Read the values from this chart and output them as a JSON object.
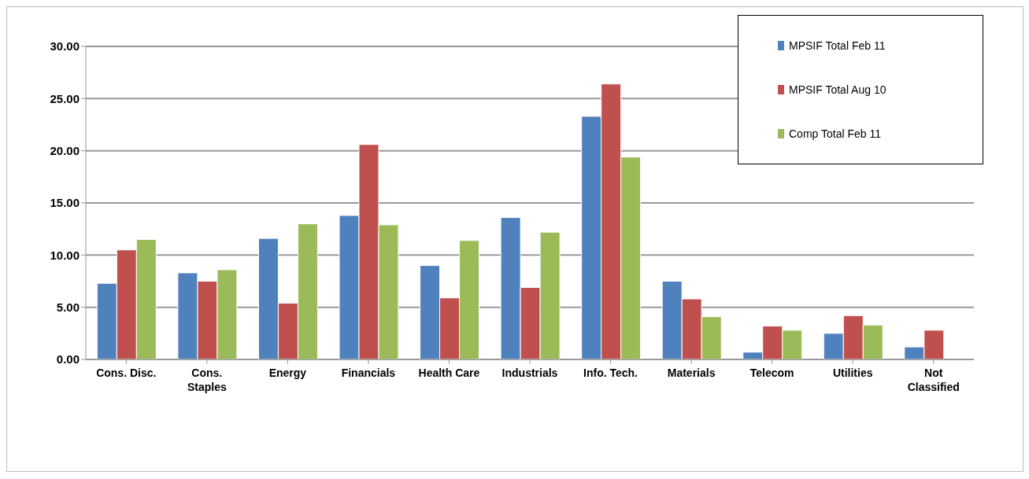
{
  "chart_data": {
    "type": "bar",
    "categories": [
      "Cons. Disc.",
      "Cons. Staples",
      "Energy",
      "Financials",
      "Health Care",
      "Industrials",
      "Info. Tech.",
      "Materials",
      "Telecom",
      "Utilities",
      "Not Classified"
    ],
    "series": [
      {
        "name": "MPSIF Total  Feb 11",
        "color": "#4f81bd",
        "values": [
          7.3,
          8.3,
          11.6,
          13.8,
          9.0,
          13.6,
          23.3,
          7.5,
          0.7,
          2.5,
          1.2
        ]
      },
      {
        "name": "MPSIF Total Aug 10",
        "color": "#c0504d",
        "values": [
          10.5,
          7.5,
          5.4,
          20.6,
          5.9,
          6.9,
          26.4,
          5.8,
          3.2,
          4.2,
          2.8
        ]
      },
      {
        "name": "Comp Total Feb 11",
        "color": "#9bbb59",
        "values": [
          11.5,
          8.6,
          13.0,
          12.9,
          11.4,
          12.2,
          19.4,
          4.1,
          2.8,
          3.3,
          0
        ]
      }
    ],
    "ylim": [
      0,
      30
    ],
    "yticks": [
      {
        "value": 0,
        "label": "0.00"
      },
      {
        "value": 5,
        "label": "5.00"
      },
      {
        "value": 10,
        "label": "10.00"
      },
      {
        "value": 15,
        "label": "15.00"
      },
      {
        "value": 20,
        "label": "20.00"
      },
      {
        "value": 25,
        "label": "25.00"
      },
      {
        "value": 30,
        "label": "30.00"
      }
    ],
    "grid": "y",
    "legend": "top right"
  }
}
